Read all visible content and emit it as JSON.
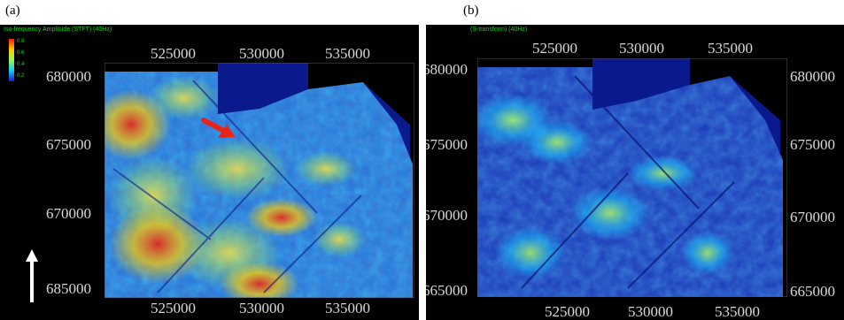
{
  "panel_a": {
    "label": "(a)",
    "header": "Iso-frequency Amplitude (STFT) (40Hz)",
    "legend": [
      "0.8",
      "0.6",
      "0.4",
      "0.2"
    ],
    "top_ticks": [
      "525000",
      "530000",
      "535000"
    ],
    "bottom_ticks": [
      "525000",
      "530000",
      "535000"
    ],
    "left_ticks": [
      "680000",
      "675000",
      "670000",
      "685000"
    ],
    "arrow_color": "#e8231a"
  },
  "panel_b": {
    "label": "(b)",
    "header": "(S-transform) (40Hz)",
    "top_ticks": [
      "525000",
      "530000",
      "535000"
    ],
    "bottom_ticks": [
      "525000",
      "530000",
      "535000"
    ],
    "left_ticks": [
      "680000",
      "675000",
      "670000",
      "665000"
    ],
    "right_ticks": [
      "680000",
      "675000",
      "670000",
      "665000"
    ]
  },
  "colors": {
    "background": "#000000",
    "deep_blue": "#0a1a8c",
    "cyan": "#19c8ff",
    "yellow": "#ffcc00",
    "red": "#e8231a",
    "tick_text": "#d8d8d8",
    "header_text": "#1fcf1f"
  }
}
